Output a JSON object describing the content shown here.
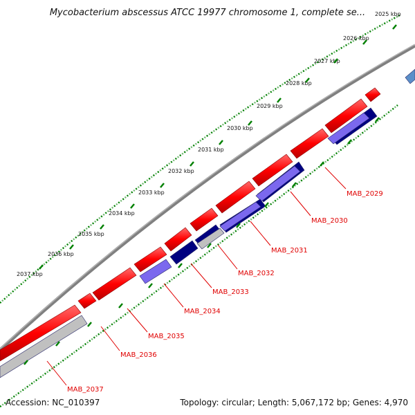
{
  "title": "Mycobacterium abscessus ATCC 19977 chromosome 1, complete se...",
  "footer": {
    "accession": "Accession: NC_010397",
    "summary": "Topology: circular; Length: 5,067,172 bp; Genes: 4,970"
  },
  "colors": {
    "backbone": "#808080",
    "forward_gene": "#ff0000",
    "reverse_gene_light": "#7b68ee",
    "reverse_gene_dark": "#000080",
    "pseudo_gene": "#c0c0c0",
    "ruler": "#008000",
    "label": "#e00000"
  },
  "ruler_labels": [
    "2025 kbp",
    "2026 kbp",
    "2027 kbp",
    "2028 kbp",
    "2029 kbp",
    "2030 kbp",
    "2031 kbp",
    "2032 kbp",
    "2033 kbp",
    "2034 kbp",
    "2035 kbp",
    "2036 kbp",
    "2037 kbp"
  ],
  "gene_labels": [
    "MAB_2029",
    "MAB_2030",
    "MAB_2031",
    "MAB_2032",
    "MAB_2033",
    "MAB_2034",
    "MAB_2035",
    "MAB_2036",
    "MAB_2037"
  ]
}
